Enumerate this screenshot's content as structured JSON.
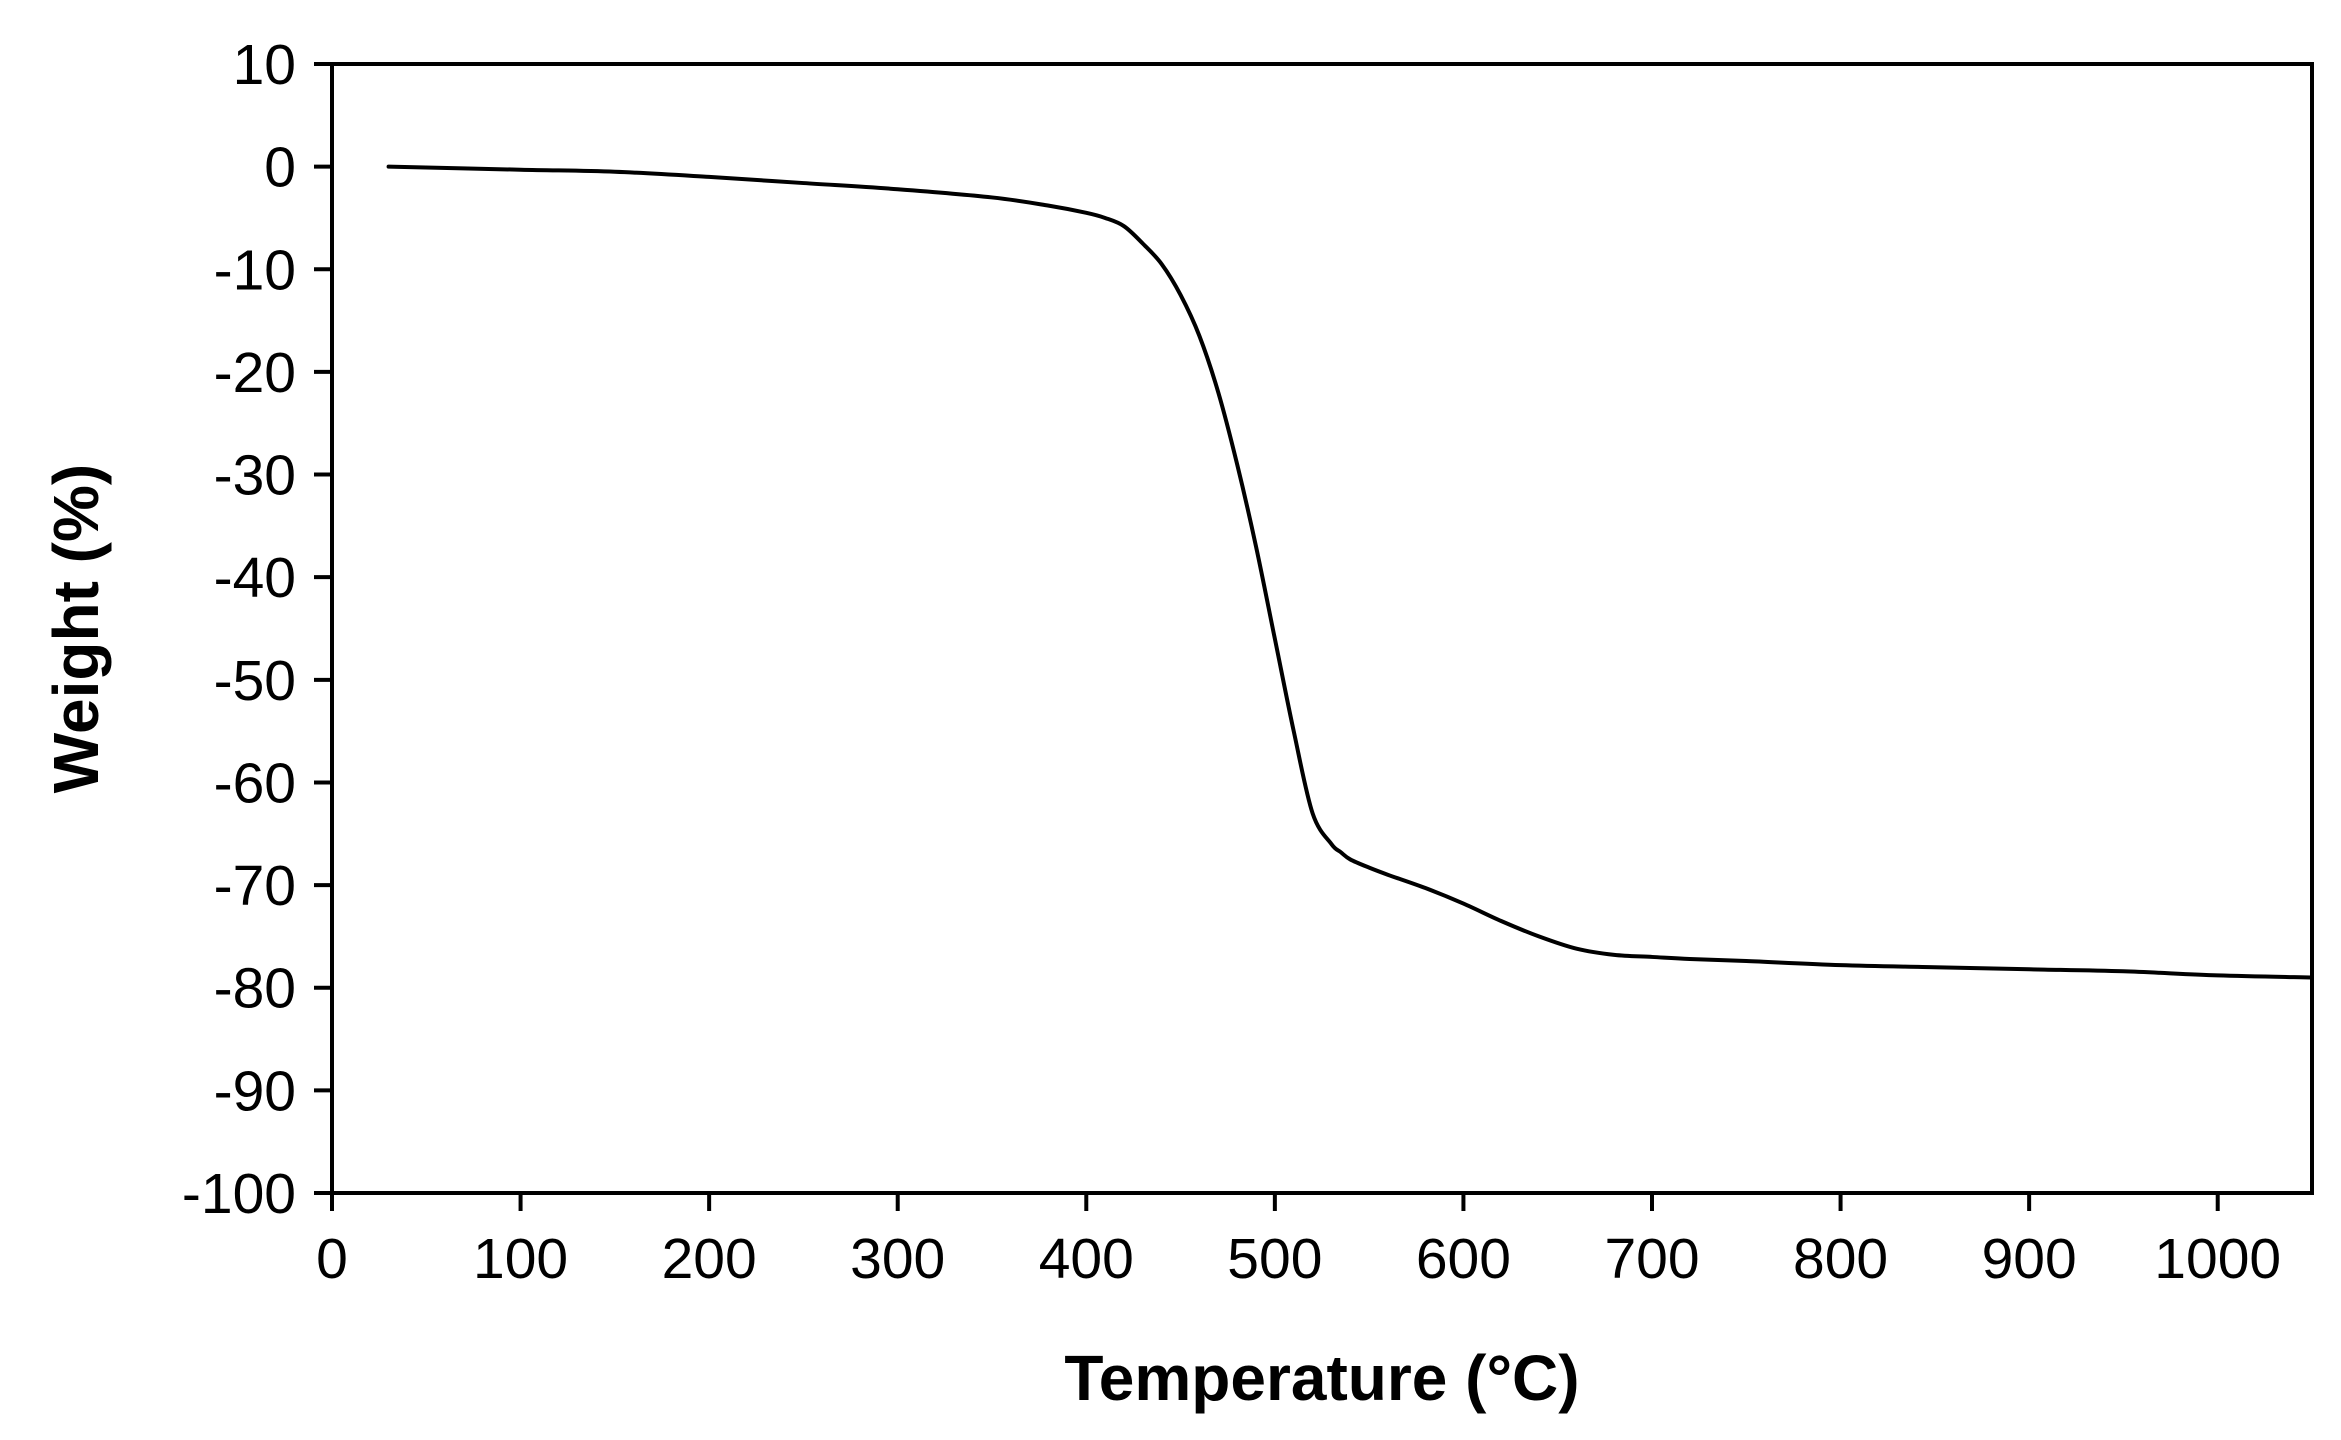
{
  "chart_data": {
    "type": "line",
    "title": "",
    "xlabel": "Temperature (°C)",
    "ylabel": "Weight (%)",
    "xlim": [
      0,
      1050
    ],
    "ylim": [
      -100,
      10
    ],
    "xticks": [
      0,
      100,
      200,
      300,
      400,
      500,
      600,
      700,
      800,
      900,
      1000
    ],
    "yticks": [
      10,
      0,
      -10,
      -20,
      -30,
      -40,
      -50,
      -60,
      -70,
      -80,
      -90,
      -100
    ],
    "xtick_labels": [
      "0",
      "100",
      "200",
      "300",
      "400",
      "500",
      "600",
      "700",
      "800",
      "900",
      "1000"
    ],
    "ytick_labels": [
      "10",
      "0",
      "-10",
      "-20",
      "-30",
      "-40",
      "-50",
      "-60",
      "-70",
      "-80",
      "-90",
      "-100"
    ],
    "grid": false,
    "legend": "none",
    "series": [
      {
        "color": "#000000",
        "x": [
          30,
          100,
          150,
          200,
          250,
          300,
          350,
          380,
          400,
          410,
          420,
          430,
          440,
          450,
          460,
          470,
          480,
          490,
          500,
          510,
          520,
          530,
          535,
          540,
          550,
          560,
          580,
          600,
          620,
          640,
          660,
          680,
          700,
          720,
          750,
          800,
          850,
          900,
          950,
          1000,
          1050
        ],
        "y": [
          0,
          -0.3,
          -0.5,
          -1.0,
          -1.6,
          -2.2,
          -3.0,
          -3.8,
          -4.5,
          -5.0,
          -5.8,
          -7.5,
          -9.5,
          -12.5,
          -16.5,
          -22,
          -29,
          -37,
          -46,
          -55,
          -63,
          -66,
          -66.8,
          -67.5,
          -68.3,
          -69.0,
          -70.3,
          -71.8,
          -73.5,
          -75.0,
          -76.2,
          -76.8,
          -77.0,
          -77.2,
          -77.4,
          -77.8,
          -78.0,
          -78.2,
          -78.4,
          -78.8,
          -79.0
        ]
      }
    ]
  }
}
